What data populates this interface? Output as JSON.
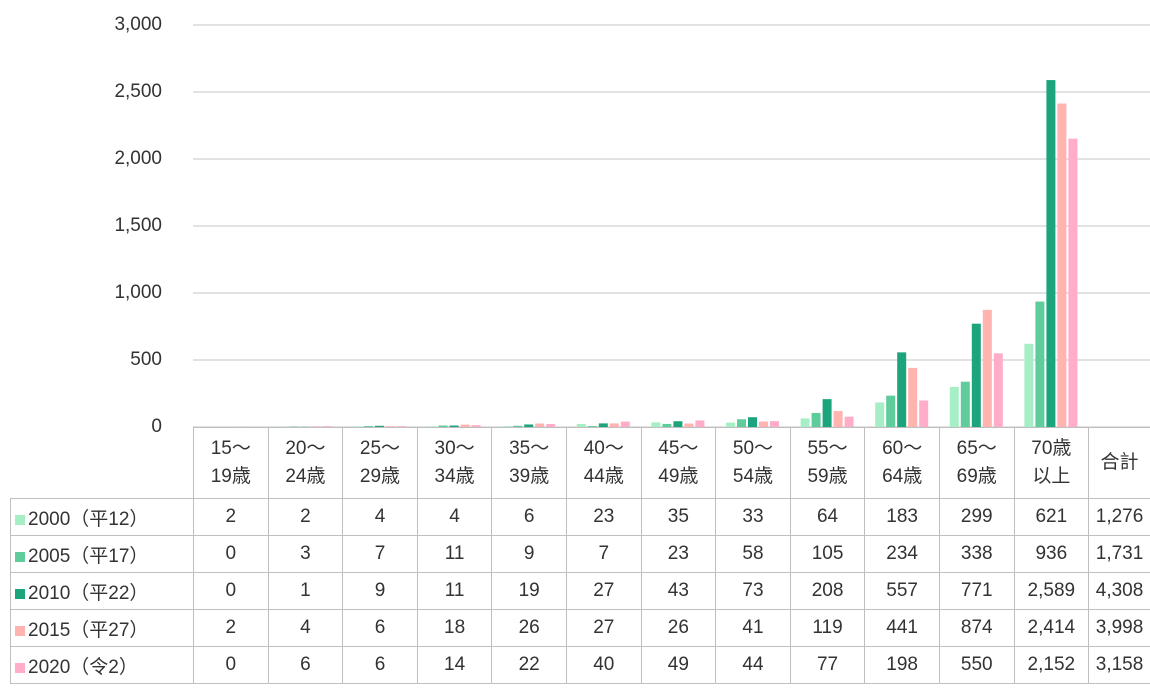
{
  "chart_data": {
    "type": "bar",
    "categories": [
      "15～\n19歳",
      "20～\n24歳",
      "25～\n29歳",
      "30～\n34歳",
      "35～\n39歳",
      "40～\n44歳",
      "45～\n49歳",
      "50～\n54歳",
      "55～\n59歳",
      "60～\n64歳",
      "65～\n69歳",
      "70歳\n以上",
      "合計"
    ],
    "series": [
      {
        "name": "2000（平12）",
        "color": "#a6eec6",
        "values": [
          2,
          2,
          4,
          4,
          6,
          23,
          35,
          33,
          64,
          183,
          299,
          621,
          1276
        ],
        "value_labels": [
          "2",
          "2",
          "4",
          "4",
          "6",
          "23",
          "35",
          "33",
          "64",
          "183",
          "299",
          "621",
          "1,276"
        ]
      },
      {
        "name": "2005（平17）",
        "color": "#5fcc9b",
        "values": [
          0,
          3,
          7,
          11,
          9,
          7,
          23,
          58,
          105,
          234,
          338,
          936,
          1731
        ],
        "value_labels": [
          "0",
          "3",
          "7",
          "11",
          "9",
          "7",
          "23",
          "58",
          "105",
          "234",
          "338",
          "936",
          "1,731"
        ]
      },
      {
        "name": "2010（平22）",
        "color": "#1ca57c",
        "values": [
          0,
          1,
          9,
          11,
          19,
          27,
          43,
          73,
          208,
          557,
          771,
          2589,
          4308
        ],
        "value_labels": [
          "0",
          "1",
          "9",
          "11",
          "19",
          "27",
          "43",
          "73",
          "208",
          "557",
          "771",
          "2,589",
          "4,308"
        ]
      },
      {
        "name": "2015（平27）",
        "color": "#ffb4b0",
        "values": [
          2,
          4,
          6,
          18,
          26,
          27,
          26,
          41,
          119,
          441,
          874,
          2414,
          3998
        ],
        "value_labels": [
          "2",
          "4",
          "6",
          "18",
          "26",
          "27",
          "26",
          "41",
          "119",
          "441",
          "874",
          "2,414",
          "3,998"
        ]
      },
      {
        "name": "2020（令2）",
        "color": "#ffadc9",
        "values": [
          0,
          6,
          6,
          14,
          22,
          40,
          49,
          44,
          77,
          198,
          550,
          2152,
          3158
        ],
        "value_labels": [
          "0",
          "6",
          "6",
          "14",
          "22",
          "40",
          "49",
          "44",
          "77",
          "198",
          "550",
          "2,152",
          "3,158"
        ]
      }
    ],
    "ylim": [
      0,
      3000
    ],
    "yticks": [
      0,
      500,
      {
        "value": 1000,
        "label": "1,000"
      },
      {
        "value": 1500,
        "label": "1,500"
      },
      {
        "value": 2000,
        "label": "2,000"
      },
      {
        "value": 2500,
        "label": "2,500"
      },
      {
        "value": 3000,
        "label": "3,000"
      }
    ],
    "grid": true
  }
}
